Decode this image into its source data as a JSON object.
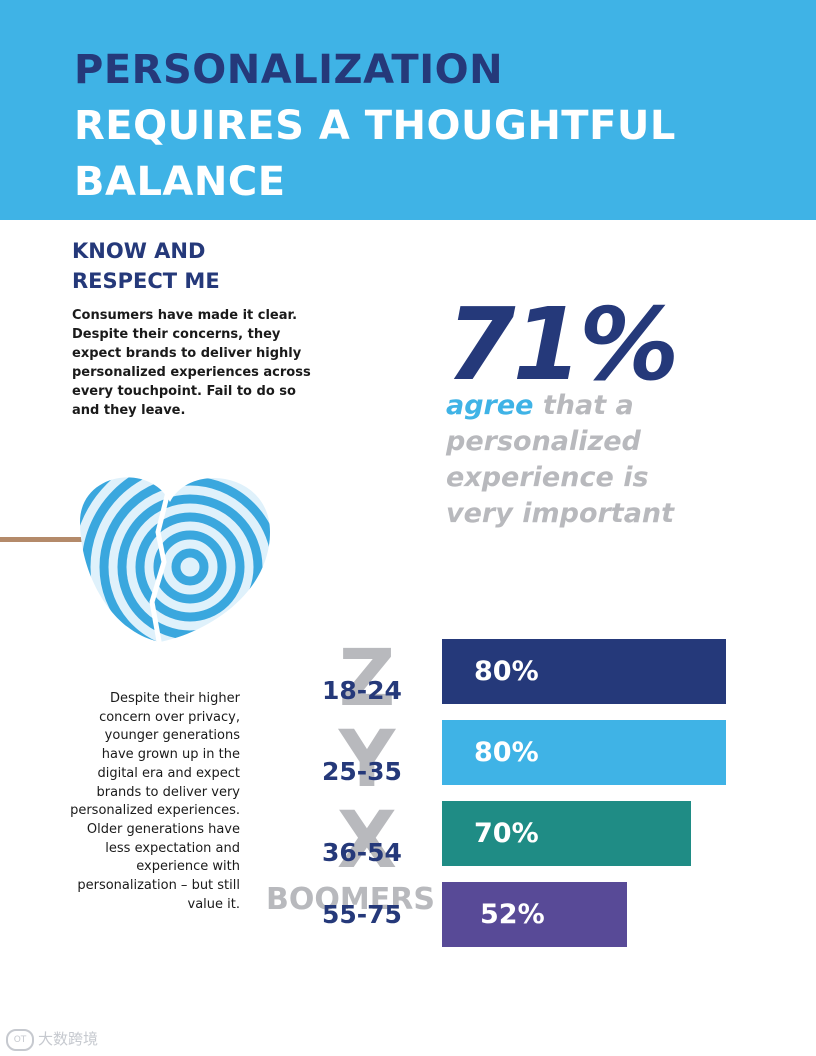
{
  "header": {
    "title_line1": "PERSONALIZATION",
    "title_line2": "REQUIRES A THOUGHTFUL",
    "title_line3": "BALANCE"
  },
  "section": {
    "heading_line1": "KNOW AND",
    "heading_line2": "RESPECT ME",
    "intro": "Consumers have made it clear. Despite their concerns, they expect brands to deliver highly personalized experiences across every touchpoint. Fail to do so and they leave."
  },
  "stat": {
    "value": "71%",
    "caption_accent": "agree",
    "caption_rest": " that a personalized experience is very important"
  },
  "side_text": "Despite their higher concern over privacy, younger generations have grown up in the digital era and expect brands to deliver very personalized experiences. Older generations have less expectation and experience with personalization – but still value it.",
  "chart_data": {
    "type": "bar",
    "orientation": "horizontal",
    "categories": [
      "18-24",
      "25-35",
      "36-54",
      "55-75"
    ],
    "generation_labels": [
      "Z",
      "Y",
      "X",
      "BOOMERS"
    ],
    "values": [
      80,
      80,
      70,
      52
    ],
    "value_labels": [
      "80%",
      "80%",
      "70%",
      "52%"
    ],
    "bar_colors": [
      "#25397a",
      "#3fb3e6",
      "#1f8c85",
      "#584a97"
    ],
    "xlim": [
      0,
      80
    ]
  },
  "watermark": {
    "logo_text": "OT",
    "text": "大数跨境"
  }
}
